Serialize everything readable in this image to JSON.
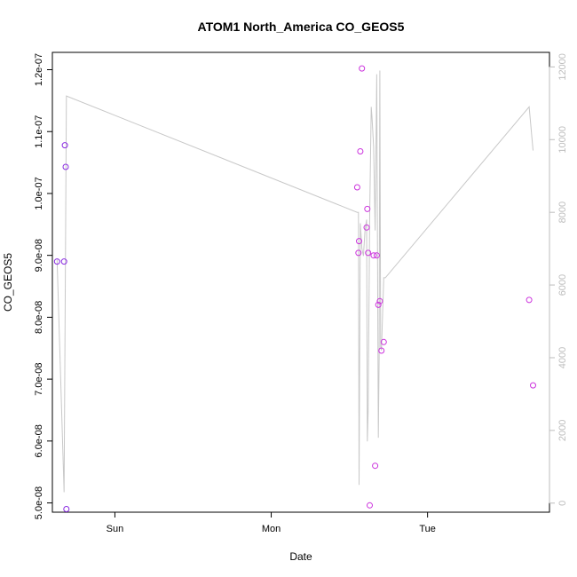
{
  "chart_data": {
    "type": "scatter",
    "title": "ATOM1 North_America CO_GEOS5",
    "xlabel": "Date",
    "ylabel": "CO_GEOS5",
    "x_ticks": [
      {
        "label": "Sun",
        "value": 1.0
      },
      {
        "label": "Mon",
        "value": 2.0
      },
      {
        "label": "Tue",
        "value": 3.0
      }
    ],
    "xlim": [
      0.6,
      3.78
    ],
    "ylim": [
      4.85e-08,
      1.228e-07
    ],
    "y_ticks": [
      {
        "label": "5.0e-08",
        "value": 5e-08
      },
      {
        "label": "6.0e-08",
        "value": 6e-08
      },
      {
        "label": "7.0e-08",
        "value": 7e-08
      },
      {
        "label": "8.0e-08",
        "value": 8e-08
      },
      {
        "label": "9.0e-08",
        "value": 9e-08
      },
      {
        "label": "1.0e-07",
        "value": 1e-07
      },
      {
        "label": "1.1e-07",
        "value": 1.1e-07
      },
      {
        "label": "1.2e-07",
        "value": 1.2e-07
      }
    ],
    "y2lim": [
      -250,
      12400
    ],
    "y2_ticks": [
      {
        "label": "0",
        "value": 0
      },
      {
        "label": "2000",
        "value": 2000
      },
      {
        "label": "4000",
        "value": 4000
      },
      {
        "label": "6000",
        "value": 6000
      },
      {
        "label": "8000",
        "value": 8000
      },
      {
        "label": "10000",
        "value": 10000
      },
      {
        "label": "12000",
        "value": 12000
      }
    ],
    "grid": false,
    "points": [
      {
        "x": 0.63,
        "y": 8.9e-08,
        "color": "#8a2be2"
      },
      {
        "x": 0.675,
        "y": 8.9e-08,
        "color": "#8a2be2"
      },
      {
        "x": 0.68,
        "y": 1.078e-07,
        "color": "#8a2be2"
      },
      {
        "x": 0.685,
        "y": 1.043e-07,
        "color": "#8a2be2"
      },
      {
        "x": 0.69,
        "y": 4.9e-08,
        "color": "#8a2be2"
      },
      {
        "x": 2.55,
        "y": 1.01e-07,
        "color": "#cc33dd"
      },
      {
        "x": 2.558,
        "y": 9.04e-08,
        "color": "#cc33dd"
      },
      {
        "x": 2.562,
        "y": 9.23e-08,
        "color": "#cc33dd"
      },
      {
        "x": 2.57,
        "y": 1.068e-07,
        "color": "#cc33dd"
      },
      {
        "x": 2.58,
        "y": 1.202e-07,
        "color": "#cc33dd"
      },
      {
        "x": 2.61,
        "y": 9.45e-08,
        "color": "#cc33dd"
      },
      {
        "x": 2.615,
        "y": 9.75e-08,
        "color": "#cc33dd"
      },
      {
        "x": 2.62,
        "y": 9.04e-08,
        "color": "#cc33dd"
      },
      {
        "x": 2.63,
        "y": 4.96e-08,
        "color": "#cc33dd"
      },
      {
        "x": 2.655,
        "y": 9e-08,
        "color": "#cc33dd"
      },
      {
        "x": 2.665,
        "y": 5.6e-08,
        "color": "#cc33dd"
      },
      {
        "x": 2.675,
        "y": 9e-08,
        "color": "#cc33dd"
      },
      {
        "x": 2.685,
        "y": 8.2e-08,
        "color": "#cc33dd"
      },
      {
        "x": 2.695,
        "y": 8.26e-08,
        "color": "#cc33dd"
      },
      {
        "x": 2.705,
        "y": 7.46e-08,
        "color": "#cc33dd"
      },
      {
        "x": 2.72,
        "y": 7.6e-08,
        "color": "#cc33dd"
      },
      {
        "x": 3.65,
        "y": 8.28e-08,
        "color": "#cc33dd"
      },
      {
        "x": 3.675,
        "y": 6.9e-08,
        "color": "#cc33dd"
      }
    ],
    "line_series": {
      "axis": "right",
      "color": "#c8c8c8",
      "x": [
        0.63,
        0.675,
        0.69,
        2.55,
        2.558,
        2.562,
        2.57,
        2.58,
        2.59,
        2.6,
        2.61,
        2.615,
        2.62,
        2.63,
        2.64,
        2.645,
        2.655,
        2.665,
        2.675,
        2.685,
        2.69,
        2.695,
        2.7,
        2.705,
        2.71,
        2.72,
        2.73,
        3.65,
        3.675
      ],
      "y": [
        6700,
        300,
        11200,
        8000,
        8000,
        500,
        7700,
        7000,
        6800,
        7500,
        7800,
        1700,
        2500,
        8000,
        10900,
        10600,
        9800,
        7500,
        11800,
        1800,
        4000,
        11900,
        4300,
        4200,
        4900,
        6200,
        6200,
        10900,
        9700
      ]
    }
  }
}
